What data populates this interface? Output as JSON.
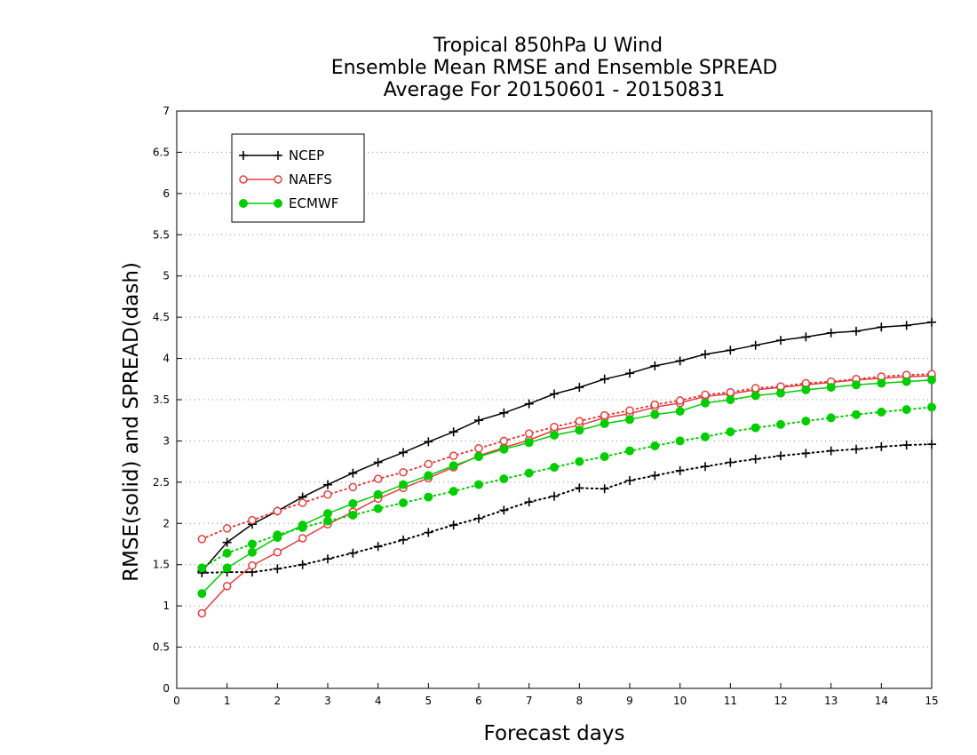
{
  "chart_data": {
    "type": "line",
    "title_lines": [
      "Tropical 850hPa U Wind",
      "Ensemble Mean RMSE and Ensemble SPREAD",
      "Average For 20150601 - 20150831"
    ],
    "xlabel": "Forecast days",
    "ylabel": "RMSE(solid) and SPREAD(dash)",
    "xlim": [
      0,
      15
    ],
    "ylim": [
      0,
      7
    ],
    "xticks": [
      0,
      1,
      2,
      3,
      4,
      5,
      6,
      7,
      8,
      9,
      10,
      11,
      12,
      13,
      14,
      15
    ],
    "yticks": [
      0,
      0.5,
      1,
      1.5,
      2,
      2.5,
      3,
      3.5,
      4,
      4.5,
      5,
      5.5,
      6,
      6.5,
      7
    ],
    "grid": "horizontal dotted",
    "legend_position": "top-left",
    "x": [
      0.5,
      1,
      1.5,
      2,
      2.5,
      3,
      3.5,
      4,
      4.5,
      5,
      5.5,
      6,
      6.5,
      7,
      7.5,
      8,
      8.5,
      9,
      9.5,
      10,
      10.5,
      11,
      11.5,
      12,
      12.5,
      13,
      13.5,
      14,
      14.5,
      15
    ],
    "series": [
      {
        "name": "NCEP",
        "line": "solid",
        "color": "#000000",
        "marker": "plus",
        "values": [
          1.42,
          1.77,
          1.99,
          2.15,
          2.32,
          2.47,
          2.61,
          2.74,
          2.86,
          2.99,
          3.11,
          3.25,
          3.34,
          3.45,
          3.57,
          3.65,
          3.75,
          3.82,
          3.91,
          3.97,
          4.05,
          4.1,
          4.16,
          4.22,
          4.26,
          4.31,
          4.33,
          4.38,
          4.4,
          4.44
        ]
      },
      {
        "name": "NCEP",
        "line": "dotted",
        "color": "#000000",
        "marker": "plus",
        "values": [
          1.4,
          1.41,
          1.41,
          1.45,
          1.5,
          1.57,
          1.64,
          1.72,
          1.8,
          1.89,
          1.98,
          2.06,
          2.16,
          2.26,
          2.33,
          2.43,
          2.42,
          2.52,
          2.58,
          2.64,
          2.69,
          2.74,
          2.78,
          2.82,
          2.85,
          2.88,
          2.9,
          2.93,
          2.95,
          2.96
        ]
      },
      {
        "name": "NAEFS",
        "line": "solid",
        "color": "#e04040",
        "marker": "open-circle",
        "values": [
          0.91,
          1.24,
          1.49,
          1.65,
          1.82,
          1.99,
          2.14,
          2.3,
          2.43,
          2.55,
          2.68,
          2.82,
          2.92,
          3.01,
          3.13,
          3.19,
          3.28,
          3.33,
          3.41,
          3.46,
          3.54,
          3.57,
          3.62,
          3.65,
          3.68,
          3.71,
          3.74,
          3.76,
          3.78,
          3.79
        ]
      },
      {
        "name": "NAEFS",
        "line": "dotted",
        "color": "#e04040",
        "marker": "open-circle",
        "values": [
          1.81,
          1.94,
          2.04,
          2.15,
          2.25,
          2.35,
          2.44,
          2.54,
          2.62,
          2.72,
          2.82,
          2.91,
          3.0,
          3.09,
          3.17,
          3.24,
          3.31,
          3.37,
          3.44,
          3.49,
          3.56,
          3.59,
          3.64,
          3.66,
          3.7,
          3.72,
          3.75,
          3.78,
          3.8,
          3.81
        ]
      },
      {
        "name": "ECMWF",
        "line": "solid",
        "color": "#00cc00",
        "marker": "filled-circle",
        "values": [
          1.15,
          1.46,
          1.65,
          1.83,
          1.98,
          2.12,
          2.24,
          2.35,
          2.47,
          2.58,
          2.7,
          2.81,
          2.9,
          2.98,
          3.07,
          3.13,
          3.21,
          3.26,
          3.32,
          3.36,
          3.46,
          3.5,
          3.55,
          3.58,
          3.62,
          3.65,
          3.68,
          3.7,
          3.72,
          3.74
        ]
      },
      {
        "name": "ECMWF",
        "line": "dotted",
        "color": "#00cc00",
        "marker": "filled-circle",
        "values": [
          1.46,
          1.64,
          1.75,
          1.86,
          1.95,
          2.03,
          2.1,
          2.18,
          2.25,
          2.32,
          2.39,
          2.47,
          2.54,
          2.61,
          2.68,
          2.75,
          2.81,
          2.88,
          2.94,
          3.0,
          3.05,
          3.11,
          3.16,
          3.2,
          3.24,
          3.28,
          3.32,
          3.35,
          3.38,
          3.41
        ]
      }
    ],
    "legend": [
      {
        "name": "NCEP",
        "color": "#000000",
        "marker": "plus"
      },
      {
        "name": "NAEFS",
        "color": "#e04040",
        "marker": "open-circle"
      },
      {
        "name": "ECMWF",
        "color": "#00cc00",
        "marker": "filled-circle"
      }
    ]
  }
}
